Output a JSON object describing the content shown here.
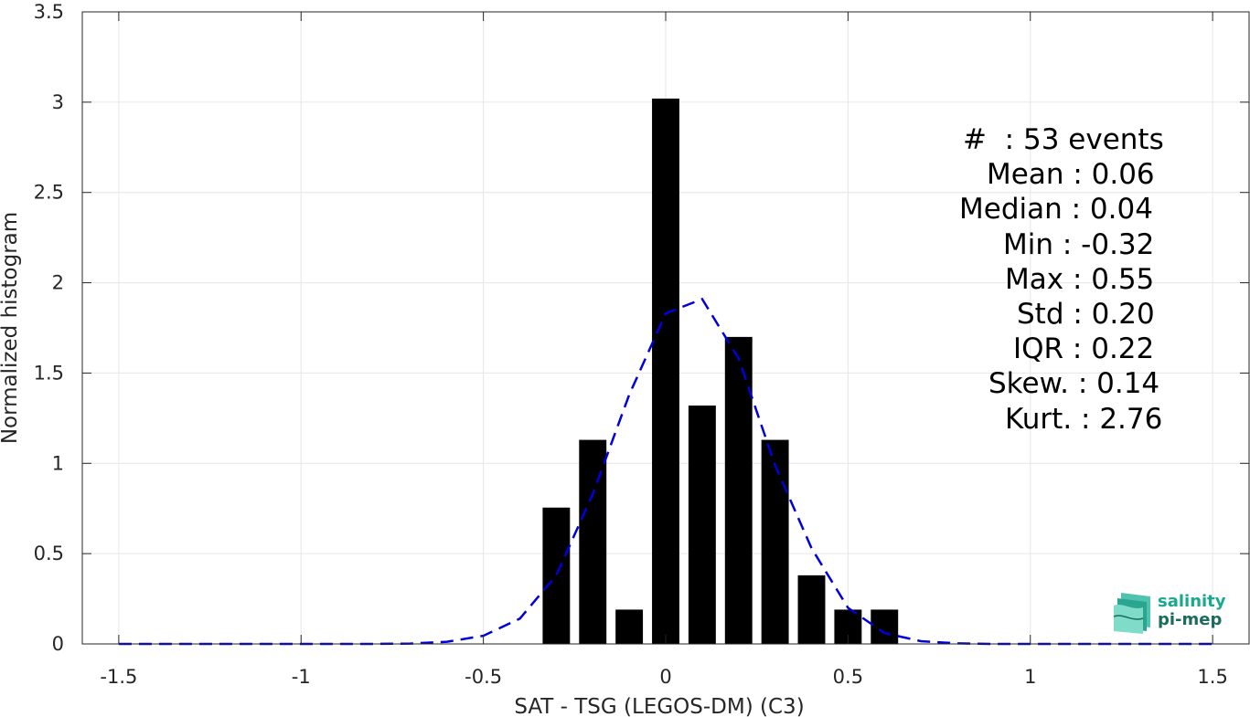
{
  "chart_data": {
    "type": "bar",
    "xlabel": "SAT - TSG (LEGOS-DM) (C3)",
    "ylabel": "Normalized histogram",
    "xlim": [
      -1.6,
      1.6
    ],
    "ylim": [
      0,
      3.5
    ],
    "grid": true,
    "x_ticks": [
      -1.5,
      -1,
      -0.5,
      0,
      0.5,
      1,
      1.5
    ],
    "x_tick_labels": [
      "-1.5",
      "-1",
      "-0.5",
      "0",
      "0.5",
      "1",
      "1.5"
    ],
    "y_ticks": [
      0,
      0.5,
      1,
      1.5,
      2,
      2.5,
      3,
      3.5
    ],
    "y_tick_labels": [
      "0",
      "0.5",
      "1",
      "1.5",
      "2",
      "2.5",
      "3",
      "3.5"
    ],
    "bar_width": 0.075,
    "bars": {
      "x": [
        -0.3,
        -0.2,
        -0.1,
        0.0,
        0.1,
        0.2,
        0.3,
        0.4,
        0.5,
        0.6
      ],
      "values": [
        0.755,
        1.13,
        0.19,
        3.02,
        1.32,
        1.7,
        1.13,
        0.38,
        0.19,
        0.19
      ],
      "color": "#000000"
    },
    "fit_curve": {
      "style": "dashed",
      "color": "#0000dd",
      "x": [
        -1.5,
        -1.4,
        -1.3,
        -1.2,
        -1.1,
        -1.0,
        -0.9,
        -0.8,
        -0.7,
        -0.6,
        -0.5,
        -0.4,
        -0.3,
        -0.2,
        -0.1,
        0.0,
        0.1,
        0.2,
        0.3,
        0.4,
        0.5,
        0.6,
        0.7,
        0.8,
        0.9,
        1.0,
        1.1,
        1.2,
        1.3,
        1.4,
        1.5
      ],
      "y": [
        0,
        0,
        0,
        0,
        0,
        0,
        0,
        0,
        0.002,
        0.012,
        0.045,
        0.14,
        0.38,
        0.83,
        1.38,
        1.83,
        1.91,
        1.58,
        0.99,
        0.53,
        0.2,
        0.06,
        0.015,
        0.003,
        0,
        0,
        0,
        0,
        0,
        0,
        0
      ]
    }
  },
  "stats": [
    "#  : 53 events",
    "Mean : 0.06",
    "Median : 0.04",
    "Min : -0.32",
    "Max : 0.55",
    "Std : 0.20",
    "IQR : 0.22",
    "Skew. : 0.14",
    "Kurt. : 2.76"
  ],
  "logo": {
    "line1": "salinity",
    "line2": "pi-mep"
  },
  "colors": {
    "grid": "#e6e6e6",
    "axis": "#262626",
    "logo_accent": "#1aa88e"
  }
}
